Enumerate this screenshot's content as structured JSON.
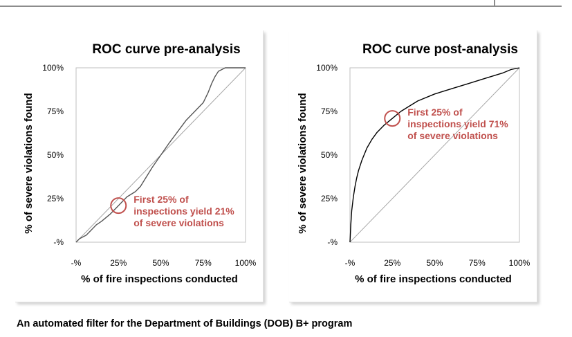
{
  "caption": "An automated filter for the Department of Buildings (DOB) B+ program",
  "chart_data": [
    {
      "type": "line",
      "title": "ROC curve pre-analysis",
      "xlabel": "% of fire inspections conducted",
      "ylabel": "% of severe violations found",
      "x_ticks": [
        "-%",
        "25%",
        "50%",
        "75%",
        "100%"
      ],
      "y_ticks": [
        "-%",
        "25%",
        "50%",
        "75%",
        "100%"
      ],
      "xlim": [
        0,
        100
      ],
      "ylim": [
        0,
        100
      ],
      "grid": false,
      "colors": {
        "curve": "#555555",
        "diagonal": "#a6a6a6",
        "annotation": "#c0504d"
      },
      "series": [
        {
          "x": [
            0,
            2,
            4,
            6,
            8,
            10,
            12,
            15,
            20,
            25,
            30,
            35,
            38,
            45,
            55,
            65,
            75,
            78,
            80,
            82,
            84,
            86,
            88,
            90,
            93,
            96,
            100
          ],
          "y": [
            0,
            2,
            3,
            4,
            6,
            8,
            10,
            12,
            16,
            21,
            26,
            29,
            32,
            43,
            57,
            70,
            80,
            86,
            91,
            95,
            98,
            99,
            100,
            100,
            100,
            100,
            100
          ]
        },
        {
          "x": [
            0,
            100
          ],
          "y": [
            0,
            100
          ]
        }
      ],
      "annotations": [
        {
          "x": 25,
          "y": 21,
          "text": [
            "First 25% of",
            "inspections yield 21%",
            "of severe violations"
          ]
        }
      ]
    },
    {
      "type": "line",
      "title": "ROC curve post-analysis",
      "xlabel": "% of fire inspections conducted",
      "ylabel": "% of severe violations found",
      "x_ticks": [
        "-%",
        "25%",
        "50%",
        "75%",
        "100%"
      ],
      "y_ticks": [
        "-%",
        "25%",
        "50%",
        "75%",
        "100%"
      ],
      "xlim": [
        0,
        100
      ],
      "ylim": [
        0,
        100
      ],
      "grid": false,
      "colors": {
        "curve": "#000000",
        "diagonal": "#a6a6a6",
        "annotation": "#c0504d"
      },
      "series": [
        {
          "x": [
            0,
            0.5,
            1,
            2,
            3,
            4,
            5,
            7,
            10,
            13,
            16,
            20,
            25,
            30,
            35,
            40,
            50,
            60,
            70,
            80,
            90,
            95,
            100
          ],
          "y": [
            0,
            10,
            18,
            26,
            32,
            37,
            41,
            47,
            54,
            59,
            63,
            67,
            71,
            75,
            78,
            81,
            85,
            88,
            91,
            94,
            97,
            99,
            100
          ]
        },
        {
          "x": [
            0,
            100
          ],
          "y": [
            0,
            100
          ]
        }
      ],
      "annotations": [
        {
          "x": 25,
          "y": 71,
          "text": [
            "First 25% of",
            "inspections yield 71%",
            "of severe violations"
          ]
        }
      ]
    }
  ]
}
